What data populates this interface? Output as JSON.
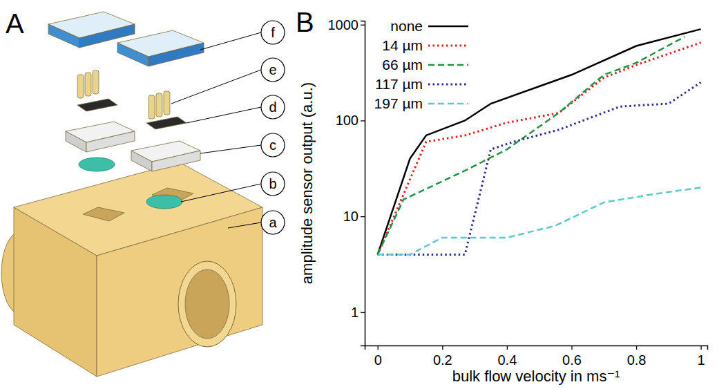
{
  "panel_labels": [
    "A",
    "B"
  ],
  "diagram": {
    "callouts": [
      "a",
      "b",
      "c",
      "d",
      "e",
      "f"
    ]
  },
  "chart_data": {
    "type": "line",
    "x_label": "bulk flow velocity in ms⁻¹",
    "y_label": "amplitude sensor output (a.u.)",
    "xlim": [
      -0.04,
      1.02
    ],
    "ylim": [
      0.45,
      1100
    ],
    "xticks": [
      0,
      0.2,
      0.4,
      0.6,
      0.8,
      1
    ],
    "yticks": [
      1,
      10,
      100,
      1000
    ],
    "log": "y",
    "legend": "upper left",
    "series": [
      {
        "name": "none",
        "color": "#000000",
        "line_style": "solid",
        "x": [
          0,
          0.1,
          0.15,
          0.27,
          0.35,
          0.6,
          0.8,
          1.0
        ],
        "values": [
          4,
          40,
          70,
          100,
          150,
          300,
          600,
          900
        ]
      },
      {
        "name": "14 µm",
        "color": "#e41a1c",
        "line_style": "dotted",
        "x": [
          0,
          0.15,
          0.27,
          0.4,
          0.56,
          0.7,
          0.8,
          1.0
        ],
        "values": [
          4,
          60,
          70,
          95,
          120,
          280,
          380,
          650
        ]
      },
      {
        "name": "66 µm",
        "color": "#1a9641",
        "line_style": "dashed",
        "x": [
          0,
          0.08,
          0.27,
          0.4,
          0.56,
          0.7,
          0.8,
          0.95
        ],
        "values": [
          4,
          15,
          30,
          50,
          120,
          300,
          400,
          750
        ]
      },
      {
        "name": "117 µm",
        "color": "#2b2b8f",
        "line_style": "dotted",
        "x": [
          0,
          0.27,
          0.35,
          0.42,
          0.56,
          0.75,
          0.9,
          1.0
        ],
        "values": [
          4,
          4,
          50,
          60,
          80,
          140,
          150,
          250
        ]
      },
      {
        "name": "197 µm",
        "color": "#5bc8d0",
        "line_style": "dashed",
        "x": [
          0,
          0.1,
          0.2,
          0.4,
          0.55,
          0.7,
          0.85,
          1.0
        ],
        "values": [
          4,
          4,
          6,
          6,
          8,
          14,
          17,
          20
        ]
      }
    ]
  }
}
